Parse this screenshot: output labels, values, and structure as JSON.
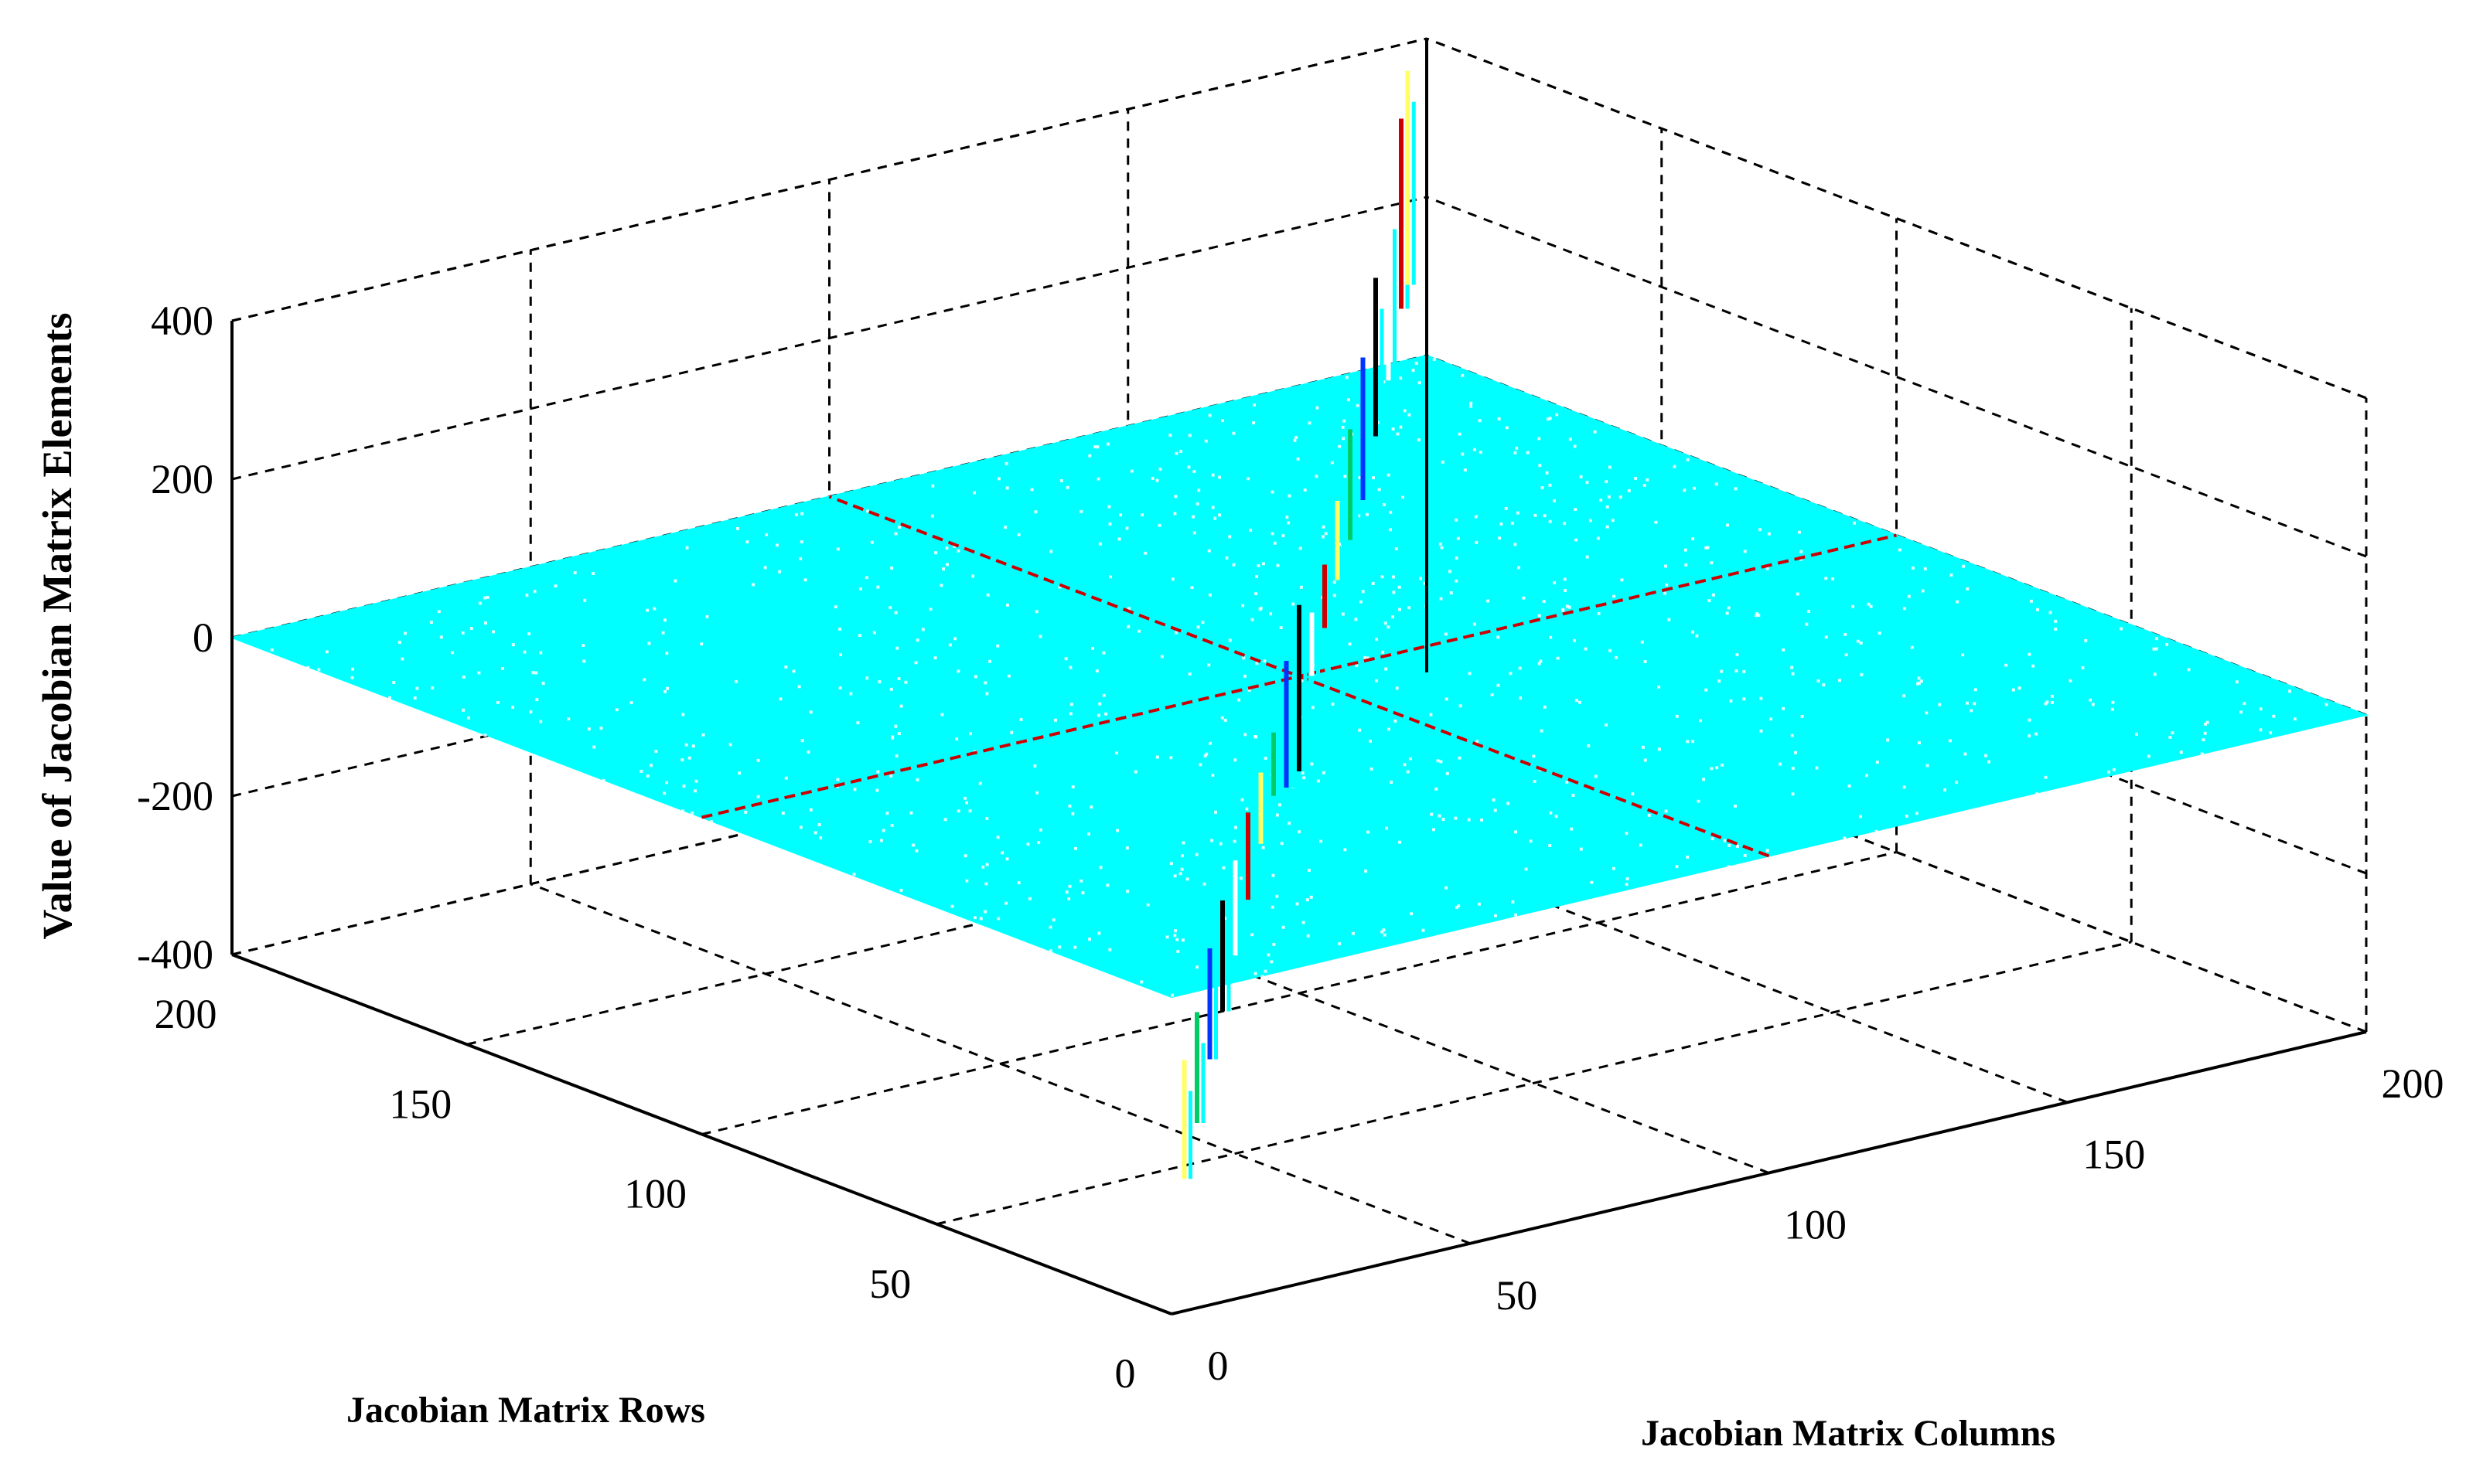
{
  "chart_data": {
    "type": "surface3d",
    "title": "",
    "xlabel": "Jacobian Matrix Columns",
    "ylabel": "Jacobian Matrix Rows",
    "zlabel": "Value of Jacobian Matrix Elements",
    "xlim": [
      0,
      200
    ],
    "ylim": [
      0,
      200
    ],
    "zlim": [
      -400,
      400
    ],
    "xticks": [
      "0",
      "50",
      "100",
      "150",
      "200"
    ],
    "yticks": [
      "0",
      "50",
      "100",
      "150",
      "200"
    ],
    "zticks": [
      "-400",
      "-200",
      "0",
      "200",
      "400"
    ],
    "grid": true,
    "surface_color": "#00ffff",
    "baseline_value": 0,
    "crosshair_color": "#cc0000",
    "spikes_along_diagonal": [
      {
        "index": 10,
        "min": -270,
        "max": -120
      },
      {
        "index": 20,
        "min": -240,
        "max": -100
      },
      {
        "index": 30,
        "min": -200,
        "max": -60
      },
      {
        "index": 40,
        "min": -180,
        "max": -40
      },
      {
        "index": 50,
        "min": -150,
        "max": -30
      },
      {
        "index": 60,
        "min": -120,
        "max": -10
      },
      {
        "index": 70,
        "min": -90,
        "max": 0
      },
      {
        "index": 80,
        "min": -70,
        "max": 10
      },
      {
        "index": 90,
        "min": -100,
        "max": 60
      },
      {
        "index": 100,
        "min": -120,
        "max": 90
      },
      {
        "index": 110,
        "min": -40,
        "max": 40
      },
      {
        "index": 120,
        "min": -20,
        "max": 60
      },
      {
        "index": 130,
        "min": 0,
        "max": 100
      },
      {
        "index": 140,
        "min": 10,
        "max": 150
      },
      {
        "index": 150,
        "min": 20,
        "max": 200
      },
      {
        "index": 160,
        "min": 60,
        "max": 260
      },
      {
        "index": 170,
        "min": 90,
        "max": 320
      },
      {
        "index": 180,
        "min": 140,
        "max": 380
      },
      {
        "index": 185,
        "min": 150,
        "max": 420
      }
    ]
  }
}
